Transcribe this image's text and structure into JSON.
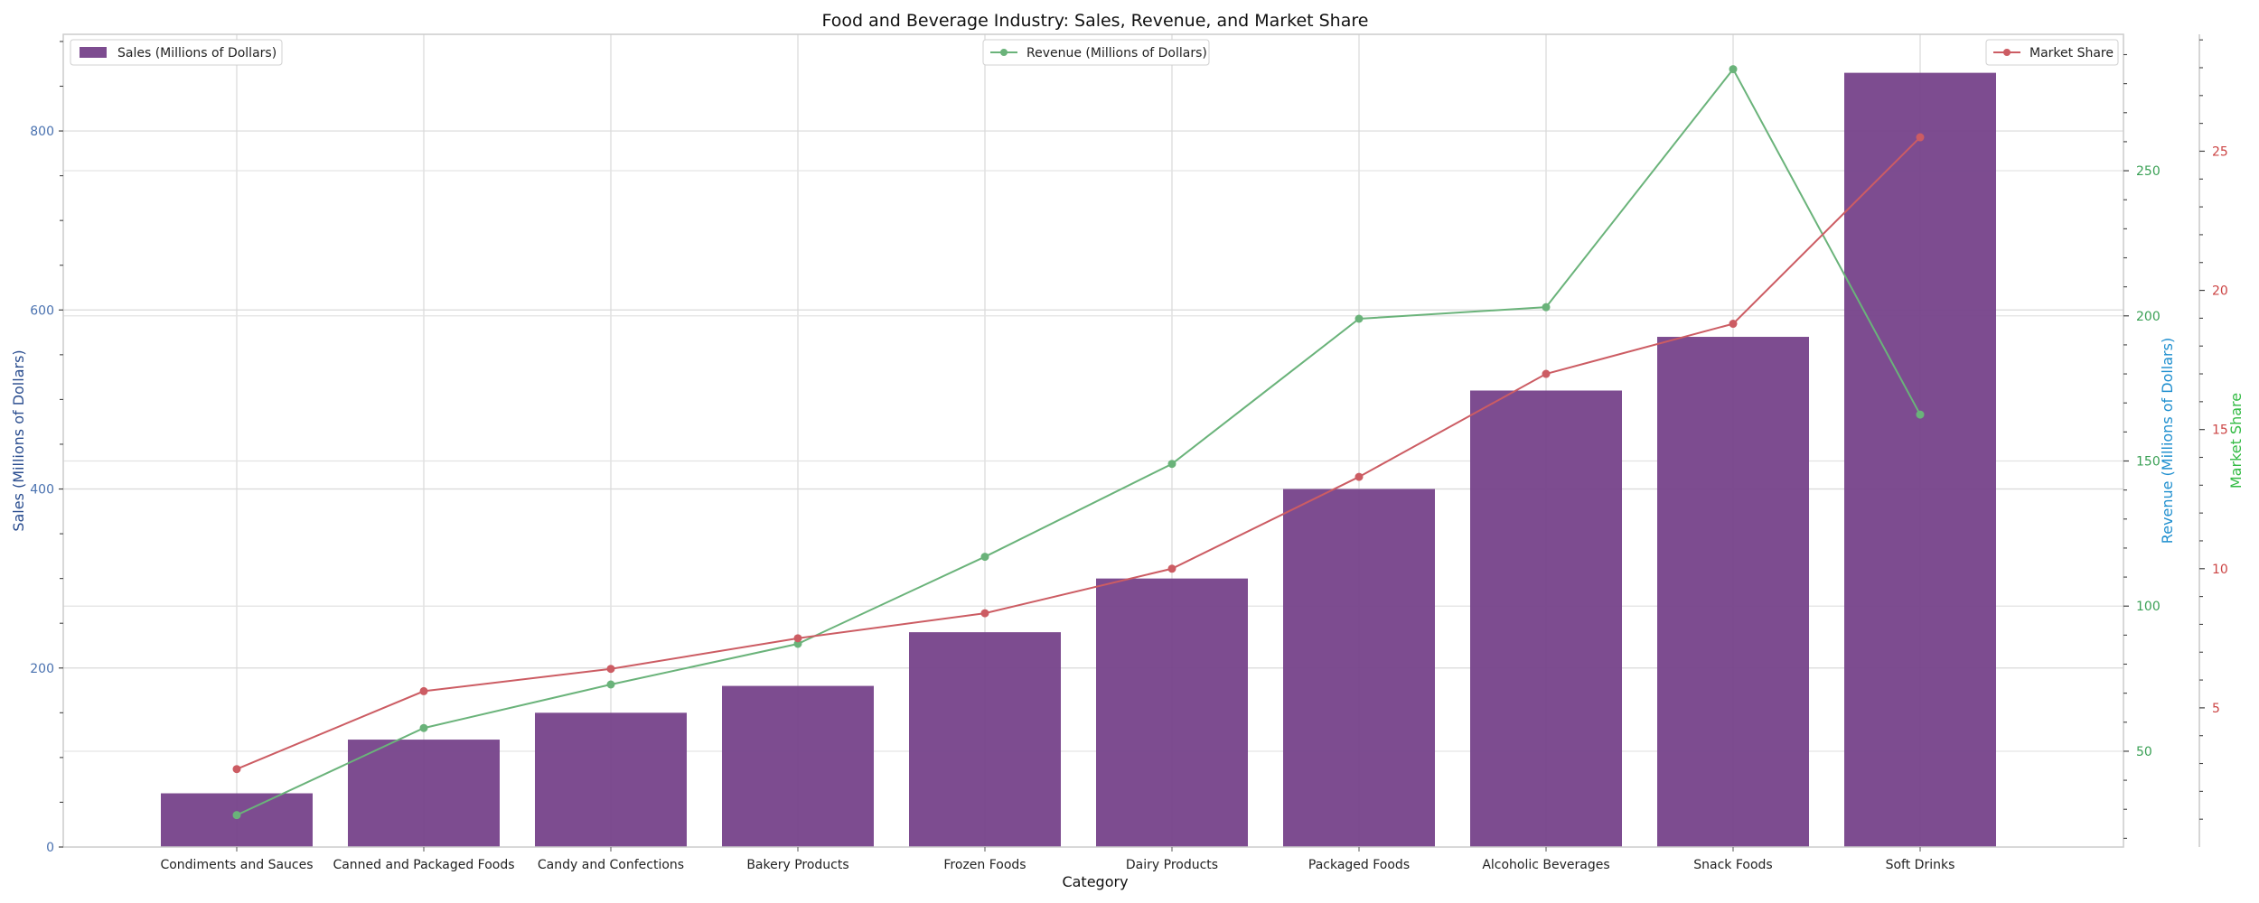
{
  "chart_data": {
    "type": "bar",
    "title": "Food and Beverage Industry: Sales, Revenue, and Market Share",
    "xlabel": "Category",
    "categories": [
      "Condiments and Sauces",
      "Canned and Packaged Foods",
      "Candy and Confections",
      "Bakery Products",
      "Frozen Foods",
      "Dairy Products",
      "Packaged Foods",
      "Alcoholic Beverages",
      "Snack Foods",
      "Soft Drinks"
    ],
    "series": [
      {
        "name": "Sales (Millions of Dollars)",
        "kind": "bar",
        "axis": "left",
        "color": "#76428a",
        "values": [
          60,
          120,
          150,
          180,
          240,
          300,
          400,
          510,
          570,
          865
        ]
      },
      {
        "name": "Revenue (Millions of Dollars)",
        "kind": "line",
        "axis": "right1",
        "color": "#6ab37a",
        "values": [
          28,
          58,
          73,
          87,
          117,
          149,
          199,
          203,
          285,
          166
        ]
      },
      {
        "name": "Market Share",
        "kind": "line",
        "axis": "right2",
        "color": "#cc5c63",
        "values": [
          2.8,
          5.6,
          6.4,
          7.5,
          8.4,
          10.0,
          13.3,
          17.0,
          18.8,
          25.5
        ]
      }
    ],
    "axes": {
      "left": {
        "label": "Sales (Millions of Dollars)",
        "ylim": [
          0,
          908
        ],
        "ticks": [
          "0",
          "200",
          "400",
          "600",
          "800"
        ],
        "tick_color": "#4a72b0",
        "label_color": "#2a4d8f"
      },
      "right1": {
        "label": "Revenue (Millions of Dollars)",
        "ylim": [
          17,
          297
        ],
        "ticks": [
          "50",
          "100",
          "150",
          "200",
          "250"
        ],
        "tick_color": "#3aa055",
        "label_color": "#1f8fcf"
      },
      "right2": {
        "label": "Market Share",
        "ylim": [
          0.0,
          29.2
        ],
        "ticks": [
          "5",
          "10",
          "15",
          "20",
          "25"
        ],
        "tick_color": "#cc4444",
        "label_color": "#33bb44"
      }
    },
    "legend": [
      {
        "name": "Sales (Millions of Dollars)",
        "position": "top-left"
      },
      {
        "name": "Revenue (Millions of Dollars)",
        "position": "top-center"
      },
      {
        "name": "Market Share",
        "position": "top-right"
      }
    ],
    "grid": true
  }
}
